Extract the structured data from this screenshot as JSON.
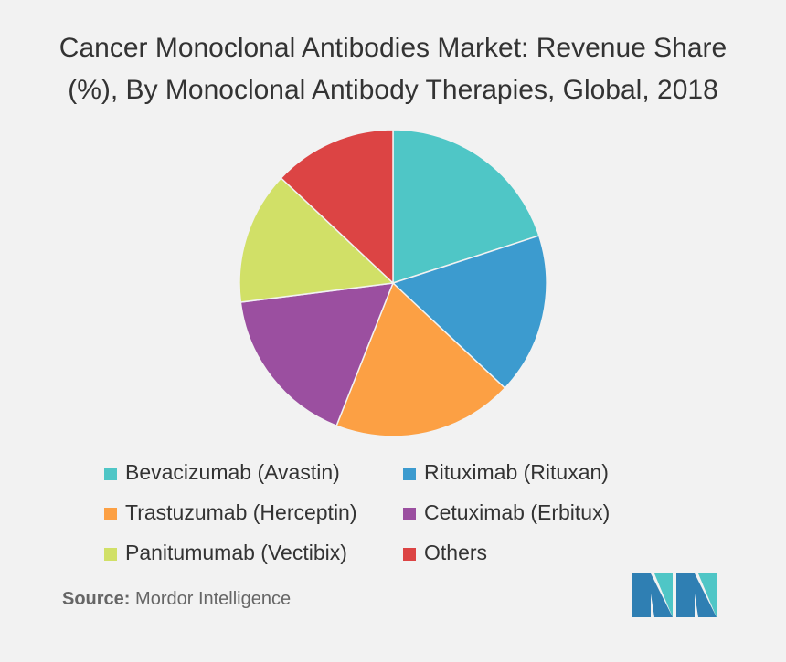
{
  "chart_data": {
    "type": "pie",
    "title": "Cancer Monoclonal Antibodies Market: Revenue Share (%), By Monoclonal Antibody Therapies, Global, 2018",
    "categories": [
      "Bevacizumab (Avastin)",
      "Rituximab (Rituxan)",
      "Trastuzumab (Herceptin)",
      "Cetuximab (Erbitux)",
      "Panitumumab (Vectibix)",
      "Others"
    ],
    "values": [
      20,
      17,
      19,
      17,
      14,
      13
    ],
    "colors": [
      "#4fc6c6",
      "#3c9bcf",
      "#fca044",
      "#9b4fa0",
      "#d1e067",
      "#dc4444"
    ],
    "source_label": "Source:",
    "source": "Mordor Intelligence"
  }
}
